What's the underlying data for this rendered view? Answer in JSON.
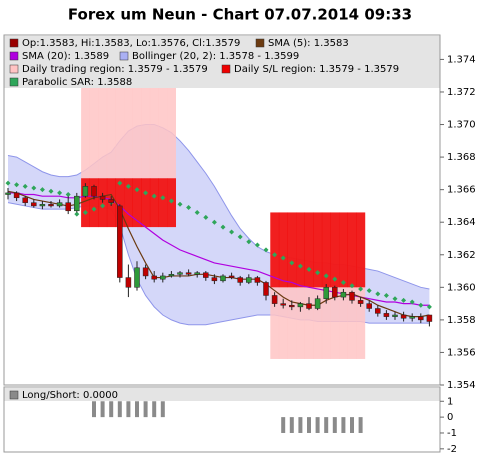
{
  "chart_data": [
    {
      "type": "candlestick",
      "title": "Forex um Neun - Chart 07.07.2014 09:33",
      "ylim": [
        1.354,
        1.3755
      ],
      "yticks": [
        1.354,
        1.356,
        1.358,
        {
          "value": 1.36,
          "label": "1.360"
        },
        1.362,
        1.364,
        1.366,
        1.368,
        {
          "value": 1.37,
          "label": "1.370"
        },
        1.372,
        1.374
      ],
      "series": [
        {
          "name": "Op:1.3583, Hi:1.3583, Lo:1.3576, Cl:1.3579",
          "color": "#990000",
          "up_color": "#2e9a3a",
          "down_color": "#c00000",
          "open": [
            1.3657,
            1.3658,
            1.3655,
            1.3652,
            1.365,
            1.3651,
            1.365,
            1.3652,
            1.3647,
            1.3656,
            1.3662,
            1.3656,
            1.3654,
            1.365,
            1.3606,
            1.36,
            1.3612,
            1.3607,
            1.3605,
            1.3607,
            1.3608,
            1.3609,
            1.3608,
            1.3609,
            1.3606,
            1.3604,
            1.3607,
            1.3606,
            1.3603,
            1.3606,
            1.3603,
            1.3595,
            1.359,
            1.3589,
            1.3588,
            1.359,
            1.3587,
            1.3593,
            1.36,
            1.3594,
            1.3597,
            1.3592,
            1.359,
            1.3587,
            1.3584,
            1.3582,
            1.3583,
            1.3581,
            1.3582,
            1.3583
          ],
          "high": [
            1.3661,
            1.3659,
            1.3656,
            1.3654,
            1.3653,
            1.3653,
            1.3654,
            1.3656,
            1.3658,
            1.3664,
            1.3663,
            1.3658,
            1.3656,
            1.3651,
            1.3614,
            1.3616,
            1.3614,
            1.361,
            1.3609,
            1.361,
            1.361,
            1.3611,
            1.361,
            1.361,
            1.3608,
            1.3608,
            1.3609,
            1.3607,
            1.3608,
            1.3607,
            1.3604,
            1.3597,
            1.3593,
            1.3592,
            1.3591,
            1.3594,
            1.3595,
            1.3602,
            1.3601,
            1.3599,
            1.3598,
            1.3594,
            1.3592,
            1.3589,
            1.3586,
            1.3585,
            1.3585,
            1.3584,
            1.3584,
            1.3583
          ],
          "low": [
            1.3654,
            1.3653,
            1.365,
            1.3649,
            1.3648,
            1.3649,
            1.3649,
            1.3645,
            1.3646,
            1.3655,
            1.3654,
            1.3652,
            1.365,
            1.3603,
            1.3594,
            1.3598,
            1.3605,
            1.3603,
            1.3603,
            1.3606,
            1.3606,
            1.3607,
            1.3606,
            1.3604,
            1.3602,
            1.3603,
            1.3605,
            1.3601,
            1.3602,
            1.3601,
            1.3592,
            1.3588,
            1.3587,
            1.3586,
            1.3585,
            1.3586,
            1.3586,
            1.359,
            1.3592,
            1.3592,
            1.359,
            1.3588,
            1.3585,
            1.3582,
            1.358,
            1.358,
            1.3579,
            1.3579,
            1.3578,
            1.3576
          ],
          "close": [
            1.3658,
            1.3655,
            1.3652,
            1.365,
            1.3651,
            1.365,
            1.3652,
            1.3647,
            1.3656,
            1.3662,
            1.3656,
            1.3654,
            1.3652,
            1.3606,
            1.36,
            1.3612,
            1.3607,
            1.3605,
            1.3607,
            1.3608,
            1.3609,
            1.3608,
            1.3609,
            1.3606,
            1.3604,
            1.3607,
            1.3606,
            1.3603,
            1.3606,
            1.3603,
            1.3595,
            1.359,
            1.3589,
            1.3588,
            1.359,
            1.3587,
            1.3593,
            1.36,
            1.3594,
            1.3597,
            1.3592,
            1.359,
            1.3587,
            1.3584,
            1.3582,
            1.3583,
            1.3581,
            1.3582,
            1.358,
            1.3579
          ]
        },
        {
          "name": "SMA (5): 1.3583",
          "color": "#6b3a10",
          "values": [
            1.3659,
            1.3658,
            1.3656,
            1.3654,
            1.3653,
            1.3652,
            1.3651,
            1.365,
            1.3651,
            1.3653,
            1.3655,
            1.3656,
            1.3657,
            1.3648,
            1.3636,
            1.3625,
            1.3615,
            1.3606,
            1.3606,
            1.3607,
            1.3607,
            1.3607,
            1.3608,
            1.3608,
            1.3607,
            1.3606,
            1.3606,
            1.3605,
            1.3605,
            1.3605,
            1.3602,
            1.3598,
            1.3594,
            1.3591,
            1.359,
            1.3589,
            1.3589,
            1.3592,
            1.3594,
            1.3595,
            1.3596,
            1.3594,
            1.3592,
            1.3589,
            1.3587,
            1.3585,
            1.3583,
            1.3582,
            1.3582,
            1.3583
          ]
        },
        {
          "name": "SMA (20): 1.3589",
          "color": "#b000e0",
          "values": [
            1.3658,
            1.3658,
            1.3657,
            1.3657,
            1.3656,
            1.3656,
            1.3656,
            1.3655,
            1.3655,
            1.3656,
            1.3656,
            1.3655,
            1.3654,
            1.365,
            1.3645,
            1.3641,
            1.3637,
            1.3633,
            1.3629,
            1.3626,
            1.3623,
            1.3621,
            1.3619,
            1.3617,
            1.3615,
            1.3614,
            1.3613,
            1.3612,
            1.3611,
            1.361,
            1.3608,
            1.3606,
            1.3604,
            1.3603,
            1.3601,
            1.36,
            1.3599,
            1.3598,
            1.3597,
            1.3596,
            1.3595,
            1.3594,
            1.3593,
            1.3592,
            1.3591,
            1.3591,
            1.359,
            1.359,
            1.3589,
            1.3589
          ]
        },
        {
          "name": "Bollinger (20, 2): 1.3578 - 1.3599",
          "color": "#aab0f4",
          "upper": [
            1.3681,
            1.368,
            1.3677,
            1.3674,
            1.3671,
            1.3669,
            1.3668,
            1.3668,
            1.3669,
            1.3672,
            1.3676,
            1.368,
            1.3683,
            1.369,
            1.3696,
            1.3699,
            1.37,
            1.37,
            1.3698,
            1.3695,
            1.369,
            1.3684,
            1.3677,
            1.367,
            1.3662,
            1.3653,
            1.3644,
            1.3636,
            1.363,
            1.3625,
            1.3622,
            1.362,
            1.3619,
            1.3618,
            1.3617,
            1.3616,
            1.3615,
            1.3615,
            1.3614,
            1.3614,
            1.3613,
            1.3612,
            1.3611,
            1.361,
            1.3608,
            1.3606,
            1.3604,
            1.3602,
            1.36,
            1.3599
          ],
          "lower": [
            1.3652,
            1.3651,
            1.365,
            1.3649,
            1.3648,
            1.3648,
            1.3648,
            1.3648,
            1.3649,
            1.365,
            1.365,
            1.3649,
            1.3648,
            1.3638,
            1.362,
            1.3605,
            1.3595,
            1.3588,
            1.3583,
            1.358,
            1.3578,
            1.3577,
            1.3577,
            1.3577,
            1.3578,
            1.3579,
            1.358,
            1.3581,
            1.3582,
            1.3583,
            1.3583,
            1.3583,
            1.3582,
            1.3581,
            1.358,
            1.358,
            1.3579,
            1.3579,
            1.3579,
            1.3579,
            1.3579,
            1.3579,
            1.3578,
            1.3578,
            1.3578,
            1.3578,
            1.3578,
            1.3578,
            1.3578,
            1.3578
          ]
        },
        {
          "name": "Daily trading region: 1.3579 - 1.3579",
          "color": "#ffc4c4",
          "low": [
            null,
            null,
            null,
            null,
            null,
            null,
            null,
            null,
            null,
            1.3637,
            1.3637,
            1.3637,
            1.3637,
            1.3637,
            1.3637,
            1.3637,
            1.3637,
            1.3637,
            1.3637,
            1.3637,
            null,
            null,
            null,
            null,
            null,
            null,
            null,
            null,
            null,
            null,
            null,
            1.3556,
            1.3556,
            1.3556,
            1.3556,
            1.3556,
            1.3556,
            1.3556,
            1.3556,
            1.3556,
            1.3556,
            1.3556,
            null,
            null,
            null,
            null,
            null,
            null,
            null,
            null
          ],
          "high": [
            null,
            null,
            null,
            null,
            null,
            null,
            null,
            null,
            null,
            1.3725,
            1.3725,
            1.3725,
            1.3725,
            1.3725,
            1.3725,
            1.3725,
            1.3725,
            1.3725,
            1.3725,
            1.3725,
            null,
            null,
            null,
            null,
            null,
            null,
            null,
            null,
            null,
            null,
            null,
            1.3646,
            1.3646,
            1.3646,
            1.3646,
            1.3646,
            1.3646,
            1.3646,
            1.3646,
            1.3646,
            1.3646,
            1.3646,
            null,
            null,
            null,
            null,
            null,
            null,
            null,
            null
          ]
        },
        {
          "name": "Daily S/L region: 1.3579 - 1.3579",
          "color": "#ee0000",
          "low": [
            null,
            null,
            null,
            null,
            null,
            null,
            null,
            null,
            null,
            1.3637,
            1.3637,
            1.3637,
            1.3637,
            1.3637,
            1.3637,
            1.3637,
            1.3637,
            1.3637,
            1.3637,
            1.3637,
            null,
            null,
            null,
            null,
            null,
            null,
            null,
            null,
            null,
            null,
            null,
            1.36,
            1.36,
            1.36,
            1.36,
            1.36,
            1.36,
            1.36,
            1.36,
            1.36,
            1.36,
            1.36,
            null,
            null,
            null,
            null,
            null,
            null,
            null,
            null
          ],
          "high": [
            null,
            null,
            null,
            null,
            null,
            null,
            null,
            null,
            null,
            1.3667,
            1.3667,
            1.3667,
            1.3667,
            1.3667,
            1.3667,
            1.3667,
            1.3667,
            1.3667,
            1.3667,
            1.3667,
            null,
            null,
            null,
            null,
            null,
            null,
            null,
            null,
            null,
            null,
            null,
            1.3646,
            1.3646,
            1.3646,
            1.3646,
            1.3646,
            1.3646,
            1.3646,
            1.3646,
            1.3646,
            1.3646,
            1.3646,
            null,
            null,
            null,
            null,
            null,
            null,
            null,
            null
          ]
        },
        {
          "name": "Parabolic SAR: 1.3588",
          "color": "#2fa65a",
          "values": [
            1.3664,
            1.3663,
            1.3662,
            1.3661,
            1.366,
            1.3659,
            1.3658,
            1.3657,
            1.3645,
            1.3646,
            1.3648,
            1.365,
            1.3652,
            1.3664,
            1.3662,
            1.366,
            1.3658,
            1.3656,
            1.3655,
            1.3653,
            1.3651,
            1.3649,
            1.3646,
            1.3643,
            1.364,
            1.3637,
            1.3634,
            1.3631,
            1.3628,
            1.3626,
            1.3623,
            1.362,
            1.3618,
            1.3615,
            1.3613,
            1.3611,
            1.3609,
            1.3607,
            1.3605,
            1.3603,
            1.3601,
            1.3599,
            1.3598,
            1.3596,
            1.3595,
            1.3593,
            1.3592,
            1.3591,
            1.3589,
            1.3588
          ]
        }
      ]
    },
    {
      "type": "bar",
      "ylim": [
        -2.2,
        1.9
      ],
      "yticks": [
        -2,
        -1,
        0,
        1
      ],
      "series": [
        {
          "name": "Long/Short: 0.0000",
          "color": "#8a8a8a",
          "values": [
            0,
            0,
            0,
            0,
            0,
            0,
            0,
            0,
            0,
            0,
            1,
            1,
            1,
            1,
            1,
            1,
            1,
            1,
            1,
            0,
            0,
            0,
            0,
            0,
            0,
            0,
            0,
            0,
            0,
            0,
            0,
            0,
            -1,
            -1,
            -1,
            -1,
            -1,
            -1,
            -1,
            -1,
            -1,
            -1,
            0,
            0,
            0,
            0,
            0,
            0,
            0,
            0
          ]
        }
      ]
    }
  ]
}
